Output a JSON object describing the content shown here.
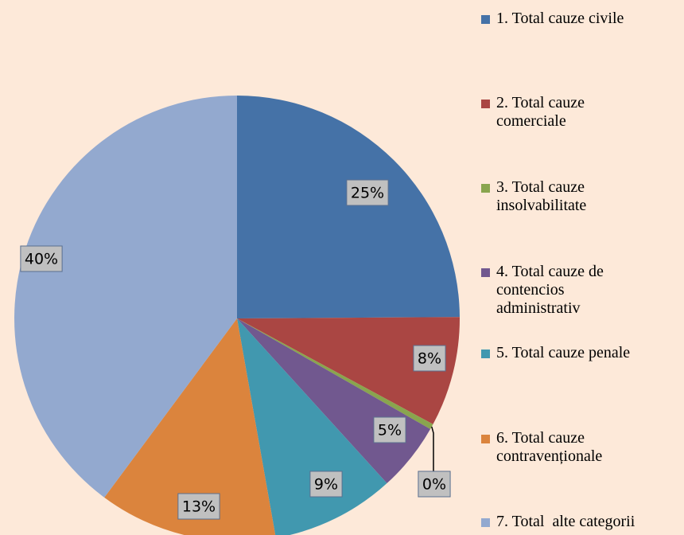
{
  "chart_data": {
    "type": "pie",
    "categories": [
      "1. Total cauze civile",
      "2. Total cauze\ncomerciale",
      "3. Total cauze\ninsolvabilitate",
      "4. Total cauze de\ncontencios\nadministrativ",
      "5. Total cauze penale",
      "6. Total cauze\ncontravenționale",
      "7. Total  alte categorii"
    ],
    "values": [
      25,
      8,
      0.4,
      5,
      9,
      13,
      40
    ],
    "value_labels": [
      "25%",
      "8%",
      "0%",
      "5%",
      "9%",
      "13%",
      "40%"
    ],
    "colors": [
      "#4572a7",
      "#aa4643",
      "#89a54e",
      "#71588f",
      "#4198af",
      "#db843d",
      "#93a9cf"
    ],
    "legend": "right"
  }
}
